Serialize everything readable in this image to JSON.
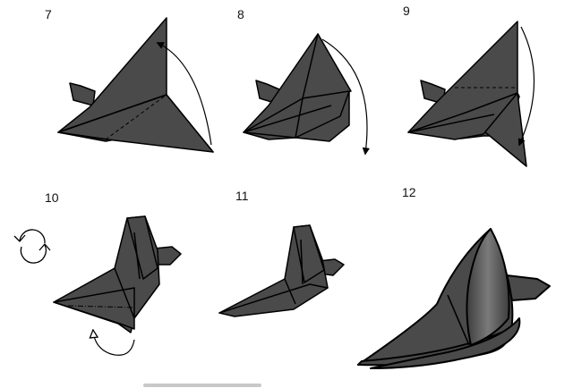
{
  "title": "",
  "steps": [
    {
      "number": "7"
    },
    {
      "number": "8"
    },
    {
      "number": "9"
    },
    {
      "number": "10"
    },
    {
      "number": "11"
    },
    {
      "number": "12"
    }
  ],
  "colors": {
    "paper": "#4a4a4a",
    "paper_light": "#6a6a6a",
    "outline": "#000000",
    "background": "#ffffff"
  },
  "icons": [
    "fold-arrow-icon",
    "turn-over-icon",
    "valley-fold-line",
    "mountain-fold-line"
  ]
}
